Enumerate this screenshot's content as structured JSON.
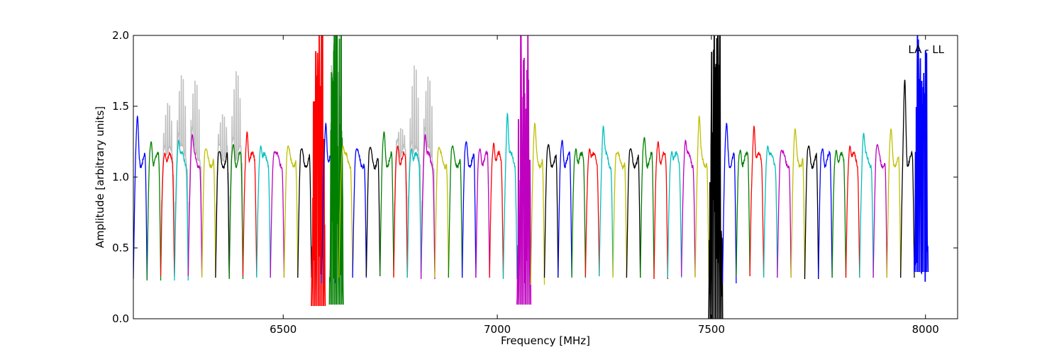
{
  "chart_data": {
    "type": "line",
    "title": "",
    "xlabel": "Frequency [MHz]",
    "ylabel": "Amplitude [arbitrary units]",
    "annotation": "LA - LL",
    "xlim": [
      6150,
      8075
    ],
    "ylim": [
      0.0,
      2.0
    ],
    "xticks": [
      6500,
      7000,
      7500,
      8000
    ],
    "xtick_labels": [
      "6500",
      "7000",
      "7500",
      "8000"
    ],
    "yticks": [
      0.0,
      0.5,
      1.0,
      1.5,
      2.0
    ],
    "ytick_labels": [
      "0.0",
      "0.5",
      "1.0",
      "1.5",
      "2.0"
    ],
    "grid": false,
    "legend": "none",
    "color_cycle": [
      "#0000ff",
      "#008000",
      "#ff0000",
      "#00bfbf",
      "#bf00bf",
      "#bfbf00",
      "#000000"
    ],
    "flagged_color": "#c0c0c0",
    "channel_width_mhz": 32,
    "channels": [
      {
        "start": 6150,
        "color": "#0000ff",
        "peak": 1.43,
        "floor": 0.28
      },
      {
        "start": 6182,
        "color": "#008000",
        "peak": 1.25,
        "floor": 0.27
      },
      {
        "start": 6214,
        "color": "#ff0000",
        "peak": 1.17,
        "floor": 0.3,
        "flagged_peak": 1.48
      },
      {
        "start": 6246,
        "color": "#00bfbf",
        "peak": 1.26,
        "floor": 0.27,
        "flagged_peak": 1.68
      },
      {
        "start": 6278,
        "color": "#bf00bf",
        "peak": 1.3,
        "floor": 0.3,
        "flagged_peak": 1.64
      },
      {
        "start": 6310,
        "color": "#bfbf00",
        "peak": 1.2,
        "floor": 0.29
      },
      {
        "start": 6342,
        "color": "#000000",
        "peak": 1.18,
        "floor": 0.29,
        "flagged_peak": 1.4
      },
      {
        "start": 6374,
        "color": "#008000",
        "peak": 1.23,
        "floor": 0.28,
        "flagged_peak": 1.71
      },
      {
        "start": 6406,
        "color": "#ff0000",
        "peak": 1.32,
        "floor": 0.3
      },
      {
        "start": 6438,
        "color": "#00bfbf",
        "peak": 1.22,
        "floor": 0.29
      },
      {
        "start": 6470,
        "color": "#bf00bf",
        "peak": 1.18,
        "floor": 0.29
      },
      {
        "start": 6502,
        "color": "#bfbf00",
        "peak": 1.22,
        "floor": 0.29
      },
      {
        "start": 6534,
        "color": "#000000",
        "peak": 1.2,
        "floor": 0.29
      },
      {
        "start": 6566,
        "color": "#ff0000",
        "peak": 2.0,
        "floor": 0.09
      },
      {
        "start": 6590,
        "color": "#0000ff",
        "peak": 1.38,
        "floor": 0.25
      },
      {
        "start": 6608,
        "color": "#008000",
        "peak": 2.0,
        "floor": 0.1,
        "flagged_peak": 1.8
      },
      {
        "start": 6630,
        "color": "#bfbf00",
        "peak": 1.22,
        "floor": 0.29
      },
      {
        "start": 6662,
        "color": "#0000ff",
        "peak": 1.2,
        "floor": 0.29
      },
      {
        "start": 6694,
        "color": "#000000",
        "peak": 1.21,
        "floor": 0.3
      },
      {
        "start": 6726,
        "color": "#008000",
        "peak": 1.32,
        "floor": 0.3
      },
      {
        "start": 6758,
        "color": "#ff0000",
        "peak": 1.22,
        "floor": 0.29,
        "flagged_peak": 1.3
      },
      {
        "start": 6790,
        "color": "#00bfbf",
        "peak": 1.2,
        "floor": 0.29,
        "flagged_peak": 1.75
      },
      {
        "start": 6822,
        "color": "#bf00bf",
        "peak": 1.3,
        "floor": 0.28,
        "flagged_peak": 1.67
      },
      {
        "start": 6854,
        "color": "#bfbf00",
        "peak": 1.21,
        "floor": 0.29
      },
      {
        "start": 6886,
        "color": "#008000",
        "peak": 1.22,
        "floor": 0.29
      },
      {
        "start": 6918,
        "color": "#0000ff",
        "peak": 1.25,
        "floor": 0.29
      },
      {
        "start": 6950,
        "color": "#bf00bf",
        "peak": 1.2,
        "floor": 0.29
      },
      {
        "start": 6982,
        "color": "#ff0000",
        "peak": 1.24,
        "floor": 0.29
      },
      {
        "start": 7014,
        "color": "#00bfbf",
        "peak": 1.45,
        "floor": 0.28
      },
      {
        "start": 7046,
        "color": "#bf00bf",
        "peak": 2.0,
        "floor": 0.1
      },
      {
        "start": 7078,
        "color": "#bfbf00",
        "peak": 1.38,
        "floor": 0.24
      },
      {
        "start": 7110,
        "color": "#000000",
        "peak": 1.23,
        "floor": 0.29
      },
      {
        "start": 7142,
        "color": "#0000ff",
        "peak": 1.26,
        "floor": 0.3
      },
      {
        "start": 7174,
        "color": "#008000",
        "peak": 1.2,
        "floor": 0.29
      },
      {
        "start": 7206,
        "color": "#ff0000",
        "peak": 1.2,
        "floor": 0.3
      },
      {
        "start": 7238,
        "color": "#00bfbf",
        "peak": 1.36,
        "floor": 0.3
      },
      {
        "start": 7270,
        "color": "#bfbf00",
        "peak": 1.17,
        "floor": 0.29
      },
      {
        "start": 7302,
        "color": "#000000",
        "peak": 1.2,
        "floor": 0.29
      },
      {
        "start": 7334,
        "color": "#008000",
        "peak": 1.28,
        "floor": 0.29
      },
      {
        "start": 7366,
        "color": "#ff0000",
        "peak": 1.25,
        "floor": 0.28
      },
      {
        "start": 7398,
        "color": "#00bfbf",
        "peak": 1.18,
        "floor": 0.29
      },
      {
        "start": 7430,
        "color": "#bf00bf",
        "peak": 1.26,
        "floor": 0.3
      },
      {
        "start": 7462,
        "color": "#bfbf00",
        "peak": 1.43,
        "floor": 0.29
      },
      {
        "start": 7494,
        "color": "#000000",
        "peak": 2.0,
        "floor": 0.0
      },
      {
        "start": 7526,
        "color": "#0000ff",
        "peak": 1.38,
        "floor": 0.25
      },
      {
        "start": 7558,
        "color": "#008000",
        "peak": 1.19,
        "floor": 0.3
      },
      {
        "start": 7590,
        "color": "#ff0000",
        "peak": 1.36,
        "floor": 0.3
      },
      {
        "start": 7622,
        "color": "#00bfbf",
        "peak": 1.22,
        "floor": 0.29
      },
      {
        "start": 7654,
        "color": "#bf00bf",
        "peak": 1.19,
        "floor": 0.29
      },
      {
        "start": 7686,
        "color": "#bfbf00",
        "peak": 1.34,
        "floor": 0.29
      },
      {
        "start": 7718,
        "color": "#000000",
        "peak": 1.22,
        "floor": 0.28
      },
      {
        "start": 7750,
        "color": "#0000ff",
        "peak": 1.2,
        "floor": 0.29
      },
      {
        "start": 7782,
        "color": "#008000",
        "peak": 1.19,
        "floor": 0.29
      },
      {
        "start": 7814,
        "color": "#ff0000",
        "peak": 1.22,
        "floor": 0.29
      },
      {
        "start": 7846,
        "color": "#00bfbf",
        "peak": 1.31,
        "floor": 0.29
      },
      {
        "start": 7878,
        "color": "#bf00bf",
        "peak": 1.23,
        "floor": 0.29
      },
      {
        "start": 7910,
        "color": "#bfbf00",
        "peak": 1.34,
        "floor": 0.29
      },
      {
        "start": 7942,
        "color": "#000000",
        "peak": 1.69,
        "floor": 0.29
      },
      {
        "start": 7974,
        "color": "#0000ff",
        "peak": 2.0,
        "floor": 0.33
      }
    ]
  }
}
